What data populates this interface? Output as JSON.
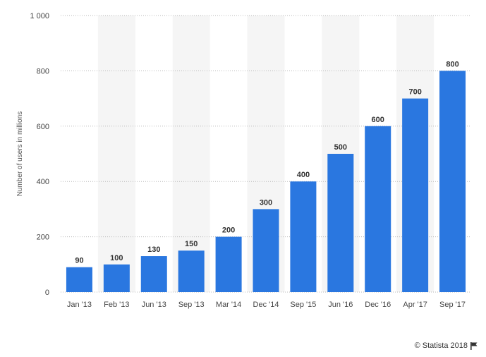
{
  "chart_data": {
    "type": "bar",
    "categories": [
      "Jan '13",
      "Feb '13",
      "Jun '13",
      "Sep '13",
      "Mar '14",
      "Dec '14",
      "Sep '15",
      "Jun '16",
      "Dec '16",
      "Apr '17",
      "Sep '17"
    ],
    "values": [
      90,
      100,
      130,
      150,
      200,
      300,
      400,
      500,
      600,
      700,
      800
    ],
    "data_labels": [
      "90",
      "100",
      "130",
      "150",
      "200",
      "300",
      "400",
      "500",
      "600",
      "700",
      "800"
    ],
    "yticks": [
      0,
      200,
      400,
      600,
      800,
      1000
    ],
    "ytick_labels": [
      "0",
      "200",
      "400",
      "600",
      "800",
      "1 000"
    ],
    "ylim": [
      0,
      1000
    ],
    "ylabel": "Number of users in millions",
    "xlabel": "",
    "title": "",
    "grid": true,
    "bar_color": "#2a77e0",
    "alt_band_color": "#f5f5f5",
    "grid_color": "#b8b8b8"
  },
  "credit": {
    "text": "© Statista 2018",
    "icon": "flag-icon"
  }
}
